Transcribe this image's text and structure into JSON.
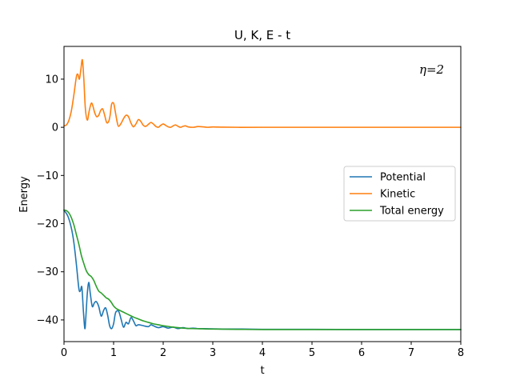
{
  "chart_data": {
    "type": "line",
    "title": "U, K, E - t",
    "xlabel": "t",
    "ylabel": "Energy",
    "xlim": [
      0,
      8
    ],
    "ylim": [
      -44.5,
      16.8
    ],
    "xticks": [
      0,
      1,
      2,
      3,
      4,
      5,
      6,
      7,
      8
    ],
    "xtick_labels": [
      "0",
      "1",
      "2",
      "3",
      "4",
      "5",
      "6",
      "7",
      "8"
    ],
    "yticks": [
      -40,
      -30,
      -20,
      -10,
      0,
      10
    ],
    "ytick_labels": [
      "−40",
      "−30",
      "−20",
      "−10",
      "0",
      "10"
    ],
    "grid": false,
    "legend_position": "center-right",
    "annotation": "η=2",
    "series": [
      {
        "name": "Potential",
        "color": "#1f77b4",
        "x": [
          0,
          0.08,
          0.15,
          0.2,
          0.25,
          0.3,
          0.33,
          0.36,
          0.39,
          0.42,
          0.44,
          0.47,
          0.5,
          0.53,
          0.57,
          0.61,
          0.65,
          0.7,
          0.75,
          0.8,
          0.84,
          0.88,
          0.92,
          0.96,
          1.0,
          1.04,
          1.1,
          1.15,
          1.2,
          1.25,
          1.3,
          1.35,
          1.4,
          1.45,
          1.5,
          1.6,
          1.7,
          1.75,
          1.8,
          1.9,
          2.0,
          2.1,
          2.2,
          2.3,
          2.4,
          2.5,
          2.6,
          2.7,
          2.8,
          3.0,
          3.3,
          3.6,
          4.0,
          5.0,
          6.0,
          7.0,
          8.0
        ],
        "y": [
          -17.2,
          -18.5,
          -21.0,
          -24.0,
          -28.5,
          -33.5,
          -34.0,
          -33.2,
          -38.0,
          -41.8,
          -39.5,
          -34.5,
          -32.2,
          -34.5,
          -37.2,
          -36.5,
          -36.2,
          -37.2,
          -39.2,
          -38.0,
          -37.5,
          -39.0,
          -41.2,
          -41.8,
          -40.8,
          -38.5,
          -38.2,
          -39.8,
          -41.5,
          -40.5,
          -40.8,
          -39.5,
          -40.2,
          -41.2,
          -41.0,
          -41.2,
          -41.4,
          -41.0,
          -41.2,
          -41.6,
          -41.4,
          -41.7,
          -41.5,
          -41.8,
          -41.6,
          -41.8,
          -41.7,
          -41.8,
          -41.8,
          -41.85,
          -41.9,
          -41.9,
          -41.95,
          -41.95,
          -42.0,
          -42.0,
          -42.0
        ]
      },
      {
        "name": "Kinetic",
        "color": "#ff7f0e",
        "x": [
          0,
          0.05,
          0.1,
          0.15,
          0.2,
          0.25,
          0.28,
          0.31,
          0.34,
          0.37,
          0.4,
          0.43,
          0.47,
          0.51,
          0.55,
          0.58,
          0.62,
          0.66,
          0.7,
          0.74,
          0.78,
          0.82,
          0.86,
          0.9,
          0.93,
          0.96,
          1.0,
          1.03,
          1.07,
          1.1,
          1.15,
          1.2,
          1.25,
          1.3,
          1.35,
          1.4,
          1.45,
          1.5,
          1.55,
          1.6,
          1.65,
          1.7,
          1.75,
          1.8,
          1.85,
          1.9,
          1.95,
          2.0,
          2.05,
          2.1,
          2.15,
          2.2,
          2.25,
          2.3,
          2.35,
          2.4,
          2.45,
          2.5,
          2.6,
          2.7,
          2.8,
          2.9,
          3.0,
          3.2,
          3.5,
          4.0,
          5.0,
          6.0,
          7.0,
          8.0
        ],
        "y": [
          0.3,
          0.5,
          1.5,
          3.5,
          6.8,
          10.5,
          11.0,
          10.0,
          12.0,
          14.0,
          10.0,
          4.0,
          1.5,
          3.5,
          5.0,
          4.5,
          3.0,
          2.2,
          2.5,
          3.5,
          3.8,
          2.5,
          1.0,
          1.2,
          2.5,
          4.8,
          5.0,
          3.5,
          1.2,
          0.2,
          0.8,
          1.8,
          2.5,
          2.2,
          0.9,
          0.1,
          0.7,
          1.6,
          1.2,
          0.4,
          0.2,
          0.6,
          1.0,
          0.7,
          0.2,
          0.0,
          0.4,
          0.7,
          0.4,
          0.1,
          0.0,
          0.3,
          0.5,
          0.2,
          0.0,
          0.2,
          0.3,
          0.1,
          0.0,
          0.15,
          0.1,
          0.0,
          0.08,
          0.03,
          0.0,
          0.0,
          0.0,
          0.0,
          0.0,
          0.0
        ]
      },
      {
        "name": "Total energy",
        "color": "#2ca02c",
        "x": [
          0,
          0.05,
          0.1,
          0.15,
          0.2,
          0.25,
          0.3,
          0.35,
          0.4,
          0.45,
          0.5,
          0.55,
          0.6,
          0.65,
          0.7,
          0.75,
          0.8,
          0.85,
          0.9,
          0.95,
          1.0,
          1.05,
          1.1,
          1.2,
          1.3,
          1.4,
          1.5,
          1.6,
          1.7,
          1.8,
          1.9,
          2.0,
          2.2,
          2.4,
          2.6,
          2.8,
          3.0,
          3.5,
          4.0,
          5.0,
          6.0,
          7.0,
          8.0
        ],
        "y": [
          -17.2,
          -17.3,
          -17.8,
          -18.8,
          -20.3,
          -22.3,
          -24.3,
          -26.6,
          -28.3,
          -29.8,
          -30.6,
          -31.0,
          -31.8,
          -33.0,
          -34.0,
          -34.4,
          -34.9,
          -35.4,
          -35.7,
          -36.3,
          -37.1,
          -37.6,
          -37.9,
          -38.4,
          -38.9,
          -39.4,
          -39.8,
          -40.2,
          -40.5,
          -40.8,
          -41.0,
          -41.2,
          -41.5,
          -41.7,
          -41.8,
          -41.85,
          -41.9,
          -41.95,
          -42.0,
          -42.0,
          -42.0,
          -42.0,
          -42.0
        ]
      }
    ]
  }
}
